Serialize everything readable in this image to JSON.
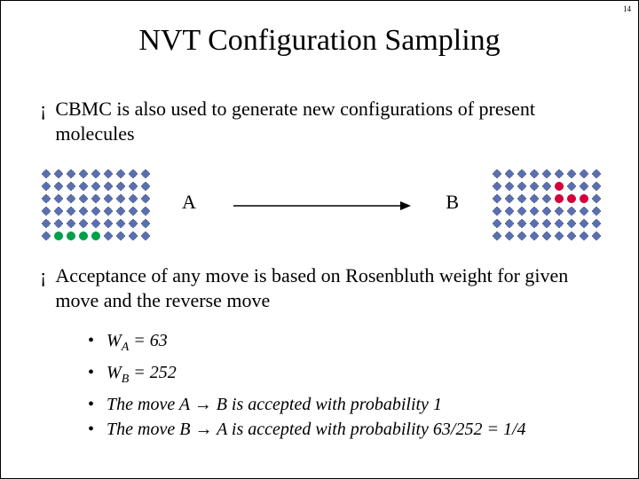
{
  "page_number": "14",
  "title": "NVT Configuration Sampling",
  "bullet_symbol": "¡",
  "bullets": [
    "CBMC is also used to generate new configurations of present molecules",
    "Acceptance of any move is based on Rosenbluth weight for given move and the reverse move"
  ],
  "diagram": {
    "label_a": "A",
    "label_b": "B",
    "grid": {
      "cols": 9,
      "rows": 6,
      "cell": 14,
      "tick_color": "#000000",
      "node_radius_default": 4.2,
      "node_radius_highlight": 5.0
    },
    "grid_a": {
      "default_color": "#5a6fb0",
      "highlight_color": "#00a04a",
      "highlights": [
        [
          1,
          5
        ],
        [
          2,
          5
        ],
        [
          3,
          5
        ],
        [
          4,
          5
        ]
      ]
    },
    "grid_b": {
      "default_color": "#5a6fb0",
      "highlight_color": "#d4003a",
      "highlights": [
        [
          5,
          1
        ],
        [
          5,
          2
        ],
        [
          6,
          2
        ],
        [
          7,
          2
        ]
      ]
    },
    "arrow_color": "#000000"
  },
  "sub_bullet_symbol": "•",
  "sub_items": [
    {
      "prefix": "W",
      "subx": "A",
      "rest": " = 63"
    },
    {
      "prefix": "W",
      "subx": "B",
      "rest": " = 252"
    },
    {
      "text": "The move A → B is accepted with probability 1"
    },
    {
      "text": "The move B → A is accepted with probability 63/252 = 1/4"
    }
  ],
  "colors": {
    "text": "#000000",
    "background": "#ffffff"
  }
}
